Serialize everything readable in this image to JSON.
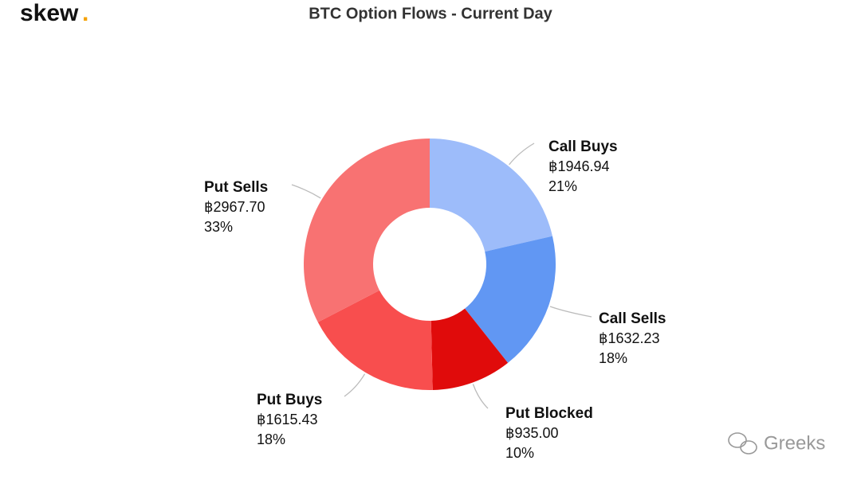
{
  "logo": {
    "text": "skew",
    "dot": "."
  },
  "watermark": "Greeks",
  "chart_data": {
    "type": "donut",
    "title": "BTC Option Flows - Current Day",
    "categories": [
      "Call Buys",
      "Call Sells",
      "Put Blocked",
      "Put Buys",
      "Put Sells"
    ],
    "values": [
      1946.94,
      1632.23,
      935.0,
      1615.43,
      2967.7
    ],
    "value_labels": [
      "฿1946.94",
      "฿1632.23",
      "฿935.00",
      "฿1615.43",
      "฿2967.70"
    ],
    "percentages": [
      21,
      18,
      10,
      18,
      33
    ],
    "percentage_labels": [
      "21%",
      "18%",
      "10%",
      "18%",
      "33%"
    ],
    "colors": [
      "#9dbcfa",
      "#6197f3",
      "#e00b0b",
      "#f84e4e",
      "#f87272"
    ]
  }
}
